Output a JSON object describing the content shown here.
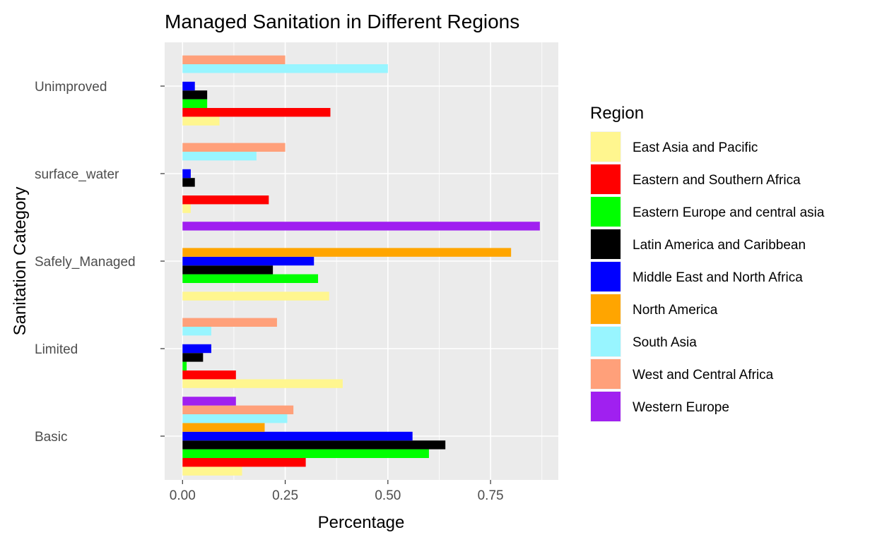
{
  "chart_data": {
    "type": "bar",
    "orientation": "horizontal",
    "title": "Managed Sanitation in Different Regions",
    "xlabel": "Percentage",
    "ylabel": "Sanitation Category",
    "xlim": [
      -0.0435,
      0.915
    ],
    "x_ticks": [
      0,
      0.25,
      0.5,
      0.75
    ],
    "x_tick_labels": [
      "0.00",
      "0.25",
      "0.50",
      "0.75"
    ],
    "grid": true,
    "legend_title": "Region",
    "legend_position": "right",
    "categories": [
      "Basic",
      "Limited",
      "Safely_Managed",
      "surface_water",
      "Unimproved"
    ],
    "series": [
      {
        "name": "East Asia and Pacific",
        "color": "#FFF68F",
        "values": [
          0.145,
          0.39,
          0.357,
          0.02,
          0.09
        ]
      },
      {
        "name": "Eastern and Southern Africa",
        "color": "#FF0000",
        "values": [
          0.3,
          0.13,
          null,
          0.21,
          0.36
        ]
      },
      {
        "name": "Eastern Europe and central asia",
        "color": "#00FF00",
        "values": [
          0.6,
          0.01,
          0.33,
          null,
          0.06
        ]
      },
      {
        "name": "Latin America and Caribbean",
        "color": "#000000",
        "values": [
          0.64,
          0.05,
          0.22,
          0.03,
          0.06
        ]
      },
      {
        "name": "Middle East and North Africa",
        "color": "#0000FF",
        "values": [
          0.56,
          0.07,
          0.32,
          0.02,
          0.03
        ]
      },
      {
        "name": "North America",
        "color": "#FFA500",
        "values": [
          0.2,
          null,
          0.8,
          null,
          null
        ]
      },
      {
        "name": "South Asia",
        "color": "#98F5FF",
        "values": [
          0.255,
          0.07,
          null,
          0.18,
          0.5
        ]
      },
      {
        "name": "West and Central Africa",
        "color": "#FFA07A",
        "values": [
          0.27,
          0.23,
          null,
          0.25,
          0.25
        ]
      },
      {
        "name": "Western Europe",
        "color": "#A020F0",
        "values": [
          0.13,
          null,
          0.87,
          null,
          null
        ]
      }
    ]
  }
}
